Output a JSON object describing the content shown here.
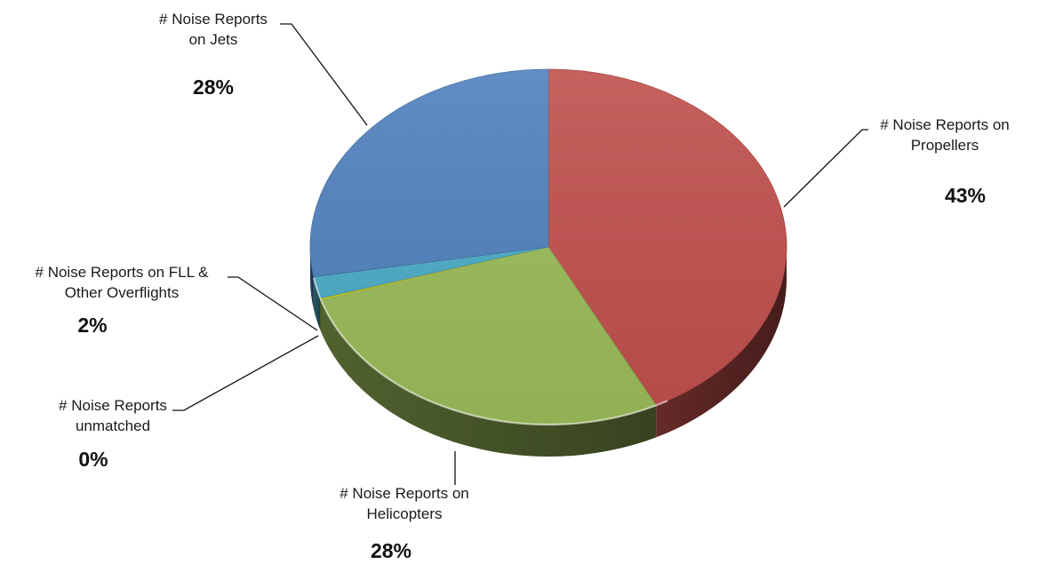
{
  "chart_data": {
    "type": "pie",
    "style": "3d",
    "slices": [
      {
        "key": "propellers",
        "lines": [
          "# Noise Reports on",
          "Propellers"
        ],
        "value": 43,
        "value_label": "43%",
        "color": "#c0504d"
      },
      {
        "key": "helicopters",
        "lines": [
          "# Noise Reports on",
          "Helicopters"
        ],
        "value": 28,
        "value_label": "28%",
        "color": "#9bbb59"
      },
      {
        "key": "unmatched",
        "lines": [
          "# Noise Reports",
          "unmatched"
        ],
        "value": 0,
        "value_label": "0%",
        "color": "#f2e200"
      },
      {
        "key": "fll-overflights",
        "lines": [
          "# Noise Reports on FLL &",
          "Other Overflights"
        ],
        "value": 2,
        "value_label": "2%",
        "color": "#4bacc6"
      },
      {
        "key": "jets",
        "lines": [
          "# Noise Reports",
          "on Jets"
        ],
        "value": 28,
        "value_label": "28%",
        "color": "#4f81bd"
      }
    ],
    "legend": "none"
  }
}
